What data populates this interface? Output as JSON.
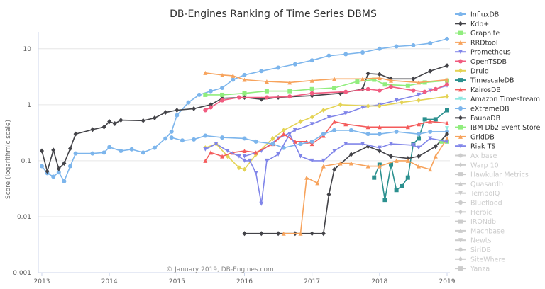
{
  "chart_data": {
    "type": "line",
    "title": "DB-Engines Ranking of Time Series DBMS",
    "ylabel": "Score (logarithmic scale)",
    "yscale": "log",
    "ylim": [
      0.001,
      20
    ],
    "xlim": [
      2013,
      2019
    ],
    "xticks": [
      "2013",
      "2014",
      "2015",
      "2016",
      "2017",
      "2018",
      "2019"
    ],
    "yticks": [
      "0.001",
      "0.01",
      "0.1",
      "1",
      "10"
    ],
    "grid": "horizontal",
    "legend_placement": "right",
    "credit": "© January 2019, DB-Engines.com",
    "series": [
      {
        "name": "InfluxDB",
        "color": "#7cb5ec",
        "marker": "circle",
        "points": [
          [
            2013.0,
            0.08
          ],
          [
            2013.08,
            0.06
          ],
          [
            2013.17,
            0.052
          ],
          [
            2013.25,
            0.062
          ],
          [
            2013.33,
            0.043
          ],
          [
            2013.42,
            0.08
          ],
          [
            2013.5,
            0.135
          ],
          [
            2013.75,
            0.135
          ],
          [
            2013.92,
            0.14
          ],
          [
            2014.0,
            0.175
          ],
          [
            2014.17,
            0.15
          ],
          [
            2014.33,
            0.16
          ],
          [
            2014.5,
            0.14
          ],
          [
            2014.67,
            0.17
          ],
          [
            2014.83,
            0.25
          ],
          [
            2014.92,
            0.33
          ],
          [
            2015.0,
            0.65
          ],
          [
            2015.17,
            1.1
          ],
          [
            2015.33,
            1.5
          ],
          [
            2015.5,
            1.75
          ],
          [
            2015.67,
            2.0
          ],
          [
            2015.83,
            2.8
          ],
          [
            2016.0,
            3.4
          ],
          [
            2016.25,
            4.0
          ],
          [
            2016.5,
            4.6
          ],
          [
            2016.75,
            5.3
          ],
          [
            2017.0,
            6.2
          ],
          [
            2017.25,
            7.5
          ],
          [
            2017.5,
            8.0
          ],
          [
            2017.75,
            8.6
          ],
          [
            2018.0,
            10.0
          ],
          [
            2018.25,
            11.0
          ],
          [
            2018.5,
            11.5
          ],
          [
            2018.75,
            12.5
          ],
          [
            2019.0,
            15.0
          ]
        ]
      },
      {
        "name": "Kdb+",
        "color": "#434348",
        "marker": "diamond",
        "points": [
          [
            2013.0,
            0.15
          ],
          [
            2013.08,
            0.065
          ],
          [
            2013.17,
            0.155
          ],
          [
            2013.25,
            0.072
          ],
          [
            2013.33,
            0.09
          ],
          [
            2013.42,
            0.165
          ],
          [
            2013.5,
            0.3
          ],
          [
            2013.75,
            0.36
          ],
          [
            2013.92,
            0.4
          ],
          [
            2014.0,
            0.5
          ],
          [
            2014.08,
            0.46
          ],
          [
            2014.17,
            0.53
          ],
          [
            2014.5,
            0.52
          ],
          [
            2014.67,
            0.58
          ],
          [
            2014.83,
            0.73
          ],
          [
            2015.0,
            0.8
          ],
          [
            2015.25,
            0.85
          ],
          [
            2015.5,
            1.0
          ],
          [
            2015.67,
            1.3
          ],
          [
            2016.0,
            1.35
          ],
          [
            2016.25,
            1.25
          ],
          [
            2016.5,
            1.35
          ],
          [
            2017.0,
            1.45
          ],
          [
            2017.42,
            1.6
          ],
          [
            2017.75,
            1.9
          ],
          [
            2017.83,
            3.6
          ],
          [
            2018.0,
            3.5
          ],
          [
            2018.17,
            2.9
          ],
          [
            2018.5,
            2.9
          ],
          [
            2018.75,
            4.0
          ],
          [
            2019.0,
            5.0
          ]
        ]
      },
      {
        "name": "Graphite",
        "color": "#90ed7d",
        "marker": "square",
        "points": [
          [
            2015.42,
            1.5
          ],
          [
            2015.67,
            1.5
          ],
          [
            2016.0,
            1.6
          ],
          [
            2016.33,
            1.75
          ],
          [
            2016.67,
            1.75
          ],
          [
            2017.0,
            1.9
          ],
          [
            2017.33,
            2.0
          ],
          [
            2017.67,
            2.6
          ],
          [
            2017.92,
            2.8
          ],
          [
            2018.08,
            2.3
          ],
          [
            2018.42,
            2.2
          ],
          [
            2018.67,
            2.5
          ],
          [
            2019.0,
            2.7
          ]
        ]
      },
      {
        "name": "RRDtool",
        "color": "#f7a35c",
        "marker": "triangle",
        "points": [
          [
            2015.42,
            3.7
          ],
          [
            2015.67,
            3.4
          ],
          [
            2015.83,
            3.3
          ],
          [
            2016.0,
            2.8
          ],
          [
            2016.33,
            2.6
          ],
          [
            2016.67,
            2.5
          ],
          [
            2017.0,
            2.7
          ],
          [
            2017.33,
            2.9
          ],
          [
            2017.75,
            2.9
          ],
          [
            2018.0,
            3.0
          ],
          [
            2018.17,
            2.7
          ],
          [
            2018.58,
            2.5
          ],
          [
            2019.0,
            2.8
          ]
        ]
      },
      {
        "name": "Prometheus",
        "color": "#8085e9",
        "marker": "triangle-down",
        "points": [
          [
            2016.0,
            0.12
          ],
          [
            2016.25,
            0.15
          ],
          [
            2016.5,
            0.25
          ],
          [
            2016.75,
            0.35
          ],
          [
            2017.0,
            0.45
          ],
          [
            2017.25,
            0.6
          ],
          [
            2017.5,
            0.7
          ],
          [
            2017.75,
            0.9
          ],
          [
            2018.0,
            1.0
          ],
          [
            2018.25,
            1.2
          ],
          [
            2018.58,
            1.5
          ],
          [
            2018.75,
            1.8
          ],
          [
            2019.0,
            2.2
          ]
        ]
      },
      {
        "name": "OpenTSDB",
        "color": "#f15c80",
        "marker": "circle",
        "points": [
          [
            2015.42,
            0.8
          ],
          [
            2015.5,
            0.9
          ],
          [
            2015.67,
            1.2
          ],
          [
            2015.92,
            1.35
          ],
          [
            2016.33,
            1.35
          ],
          [
            2016.67,
            1.4
          ],
          [
            2017.0,
            1.6
          ],
          [
            2017.5,
            1.7
          ],
          [
            2017.83,
            1.9
          ],
          [
            2018.0,
            1.8
          ],
          [
            2018.17,
            2.1
          ],
          [
            2018.5,
            1.8
          ],
          [
            2018.67,
            1.7
          ],
          [
            2018.83,
            1.9
          ],
          [
            2019.0,
            2.3
          ]
        ]
      },
      {
        "name": "Druid",
        "color": "#e4d354",
        "marker": "diamond",
        "points": [
          [
            2015.42,
            0.17
          ],
          [
            2015.58,
            0.2
          ],
          [
            2015.75,
            0.12
          ],
          [
            2015.92,
            0.075
          ],
          [
            2016.0,
            0.07
          ],
          [
            2016.17,
            0.13
          ],
          [
            2016.42,
            0.25
          ],
          [
            2016.58,
            0.35
          ],
          [
            2016.83,
            0.5
          ],
          [
            2017.0,
            0.6
          ],
          [
            2017.17,
            0.8
          ],
          [
            2017.42,
            1.0
          ],
          [
            2017.83,
            0.95
          ],
          [
            2018.0,
            0.95
          ],
          [
            2018.33,
            1.1
          ],
          [
            2018.58,
            1.2
          ],
          [
            2019.0,
            1.4
          ]
        ]
      },
      {
        "name": "TimescaleDB",
        "color": "#2b908f",
        "marker": "square",
        "points": [
          [
            2017.92,
            0.05
          ],
          [
            2018.0,
            0.085
          ],
          [
            2018.08,
            0.02
          ],
          [
            2018.17,
            0.085
          ],
          [
            2018.25,
            0.03
          ],
          [
            2018.33,
            0.035
          ],
          [
            2018.42,
            0.05
          ],
          [
            2018.5,
            0.2
          ],
          [
            2018.58,
            0.25
          ],
          [
            2018.67,
            0.55
          ],
          [
            2018.83,
            0.55
          ],
          [
            2019.0,
            0.8
          ]
        ]
      },
      {
        "name": "KairosDB",
        "color": "#f45b5b",
        "marker": "triangle",
        "points": [
          [
            2015.42,
            0.1
          ],
          [
            2015.5,
            0.14
          ],
          [
            2015.67,
            0.12
          ],
          [
            2015.83,
            0.14
          ],
          [
            2016.0,
            0.15
          ],
          [
            2016.17,
            0.14
          ],
          [
            2016.42,
            0.2
          ],
          [
            2016.58,
            0.3
          ],
          [
            2016.75,
            0.22
          ],
          [
            2016.92,
            0.22
          ],
          [
            2017.0,
            0.2
          ],
          [
            2017.17,
            0.28
          ],
          [
            2017.33,
            0.5
          ],
          [
            2017.5,
            0.45
          ],
          [
            2017.83,
            0.4
          ],
          [
            2018.0,
            0.4
          ],
          [
            2018.42,
            0.4
          ],
          [
            2018.58,
            0.45
          ],
          [
            2018.75,
            0.5
          ],
          [
            2019.0,
            0.47
          ]
        ]
      },
      {
        "name": "Amazon Timestream",
        "color": "#91e8e1",
        "marker": "triangle-down",
        "points": [
          [
            2019.0,
            0.38
          ]
        ]
      },
      {
        "name": "eXtremeDB",
        "color": "#7cb5ec",
        "marker": "circle",
        "points": [
          [
            2014.92,
            0.26
          ],
          [
            2015.08,
            0.23
          ],
          [
            2015.25,
            0.24
          ],
          [
            2015.42,
            0.28
          ],
          [
            2015.67,
            0.26
          ],
          [
            2016.0,
            0.25
          ],
          [
            2016.17,
            0.22
          ],
          [
            2016.42,
            0.2
          ],
          [
            2016.58,
            0.17
          ],
          [
            2016.83,
            0.2
          ],
          [
            2017.0,
            0.22
          ],
          [
            2017.17,
            0.3
          ],
          [
            2017.33,
            0.35
          ],
          [
            2017.58,
            0.35
          ],
          [
            2017.83,
            0.3
          ],
          [
            2018.0,
            0.3
          ],
          [
            2018.25,
            0.33
          ],
          [
            2018.58,
            0.3
          ],
          [
            2018.75,
            0.33
          ],
          [
            2019.0,
            0.33
          ]
        ]
      },
      {
        "name": "FaunaDB",
        "color": "#434348",
        "marker": "diamond",
        "points": [
          [
            2016.0,
            0.005
          ],
          [
            2016.25,
            0.005
          ],
          [
            2016.5,
            0.005
          ],
          [
            2016.75,
            0.005
          ],
          [
            2017.0,
            0.005
          ],
          [
            2017.17,
            0.005
          ],
          [
            2017.25,
            0.025
          ],
          [
            2017.33,
            0.07
          ],
          [
            2017.58,
            0.13
          ],
          [
            2017.83,
            0.18
          ],
          [
            2018.0,
            0.15
          ],
          [
            2018.17,
            0.12
          ],
          [
            2018.42,
            0.11
          ],
          [
            2018.58,
            0.12
          ],
          [
            2018.83,
            0.18
          ],
          [
            2019.0,
            0.3
          ]
        ]
      },
      {
        "name": "IBM Db2 Event Store",
        "color": "#90ed7d",
        "marker": "square",
        "points": [
          [
            2018.92,
            0.22
          ],
          [
            2019.0,
            0.22
          ]
        ]
      },
      {
        "name": "GridDB",
        "color": "#f7a35c",
        "marker": "triangle",
        "points": [
          [
            2016.58,
            0.005
          ],
          [
            2016.83,
            0.005
          ],
          [
            2016.92,
            0.05
          ],
          [
            2017.08,
            0.04
          ],
          [
            2017.17,
            0.08
          ],
          [
            2017.42,
            0.09
          ],
          [
            2017.58,
            0.09
          ],
          [
            2017.83,
            0.08
          ],
          [
            2018.0,
            0.08
          ],
          [
            2018.25,
            0.1
          ],
          [
            2018.42,
            0.1
          ],
          [
            2018.58,
            0.08
          ],
          [
            2018.75,
            0.07
          ],
          [
            2018.83,
            0.12
          ],
          [
            2019.0,
            0.25
          ]
        ]
      },
      {
        "name": "Riak TS",
        "color": "#8085e9",
        "marker": "triangle-down",
        "points": [
          [
            2015.42,
            0.16
          ],
          [
            2015.58,
            0.2
          ],
          [
            2015.75,
            0.15
          ],
          [
            2015.92,
            0.12
          ],
          [
            2016.0,
            0.1
          ],
          [
            2016.08,
            0.1
          ],
          [
            2016.17,
            0.06
          ],
          [
            2016.25,
            0.017
          ],
          [
            2016.33,
            0.1
          ],
          [
            2016.5,
            0.13
          ],
          [
            2016.67,
            0.3
          ],
          [
            2016.83,
            0.12
          ],
          [
            2017.0,
            0.1
          ],
          [
            2017.17,
            0.1
          ],
          [
            2017.33,
            0.15
          ],
          [
            2017.5,
            0.2
          ],
          [
            2017.75,
            0.2
          ],
          [
            2018.0,
            0.17
          ],
          [
            2018.17,
            0.2
          ],
          [
            2018.5,
            0.19
          ],
          [
            2018.58,
            0.17
          ],
          [
            2018.75,
            0.25
          ],
          [
            2019.0,
            0.22
          ]
        ]
      }
    ],
    "hidden_series": [
      "Axibase",
      "Warp 10",
      "Hawkular Metrics",
      "Quasardb",
      "TempoIQ",
      "Blueflood",
      "Heroic",
      "IRONdb",
      "Machbase",
      "Newts",
      "SiriDB",
      "SiteWhere",
      "Yanza"
    ],
    "hidden_color": "#cccccc"
  }
}
